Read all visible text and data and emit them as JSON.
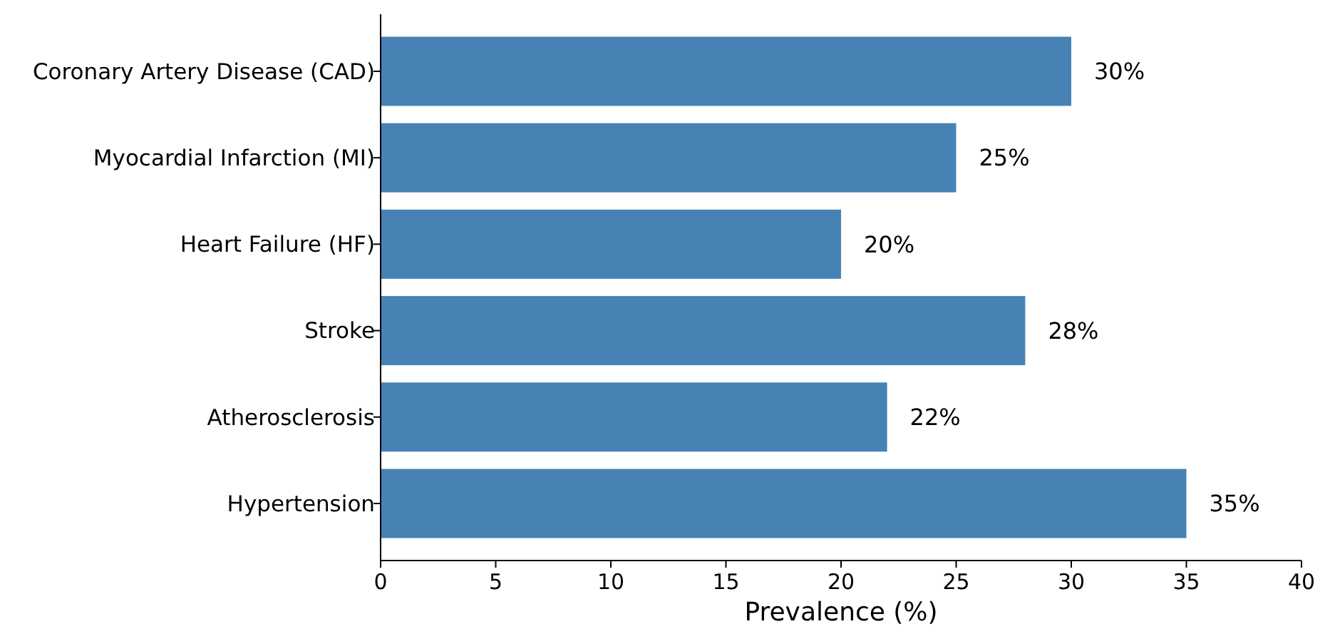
{
  "chart_data": {
    "type": "bar",
    "orientation": "horizontal",
    "xlabel": "Prevalence (%)",
    "categories": [
      "Coronary Artery Disease (CAD)",
      "Myocardial Infarction (MI)",
      "Heart Failure (HF)",
      "Stroke",
      "Atherosclerosis",
      "Hypertension"
    ],
    "values": [
      30,
      25,
      20,
      28,
      22,
      35
    ],
    "color": "#4682b4",
    "value_labels": [
      "30%",
      "25%",
      "20%",
      "28%",
      "22%",
      "35%"
    ],
    "xlim": [
      0,
      40
    ],
    "xticks": [
      0,
      5,
      10,
      15,
      20,
      25,
      30,
      35,
      40
    ]
  }
}
